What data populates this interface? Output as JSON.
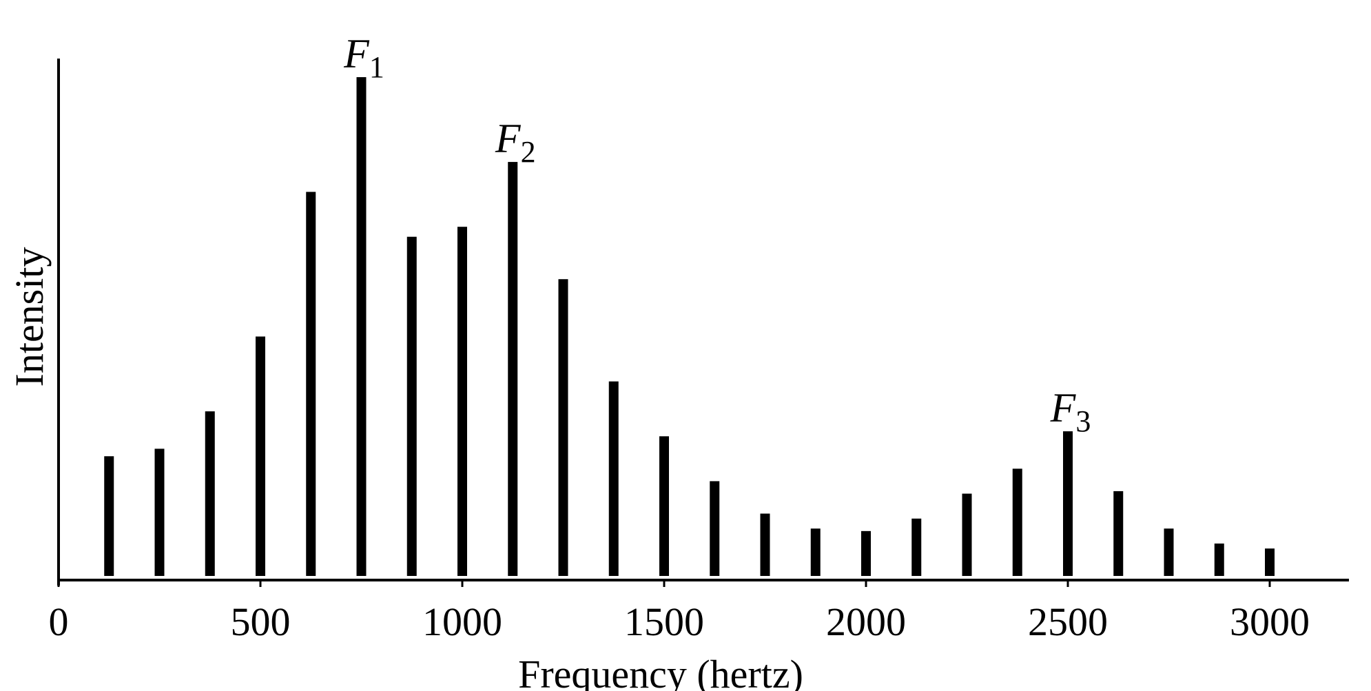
{
  "chart_data": {
    "type": "bar",
    "title": "",
    "xlabel": "Frequency (hertz)",
    "ylabel": "Intensity",
    "xlim": [
      0,
      3200
    ],
    "ylim": [
      0,
      100
    ],
    "xticks": [
      0,
      500,
      1000,
      1500,
      2000,
      2500,
      3000
    ],
    "grid": false,
    "legend": "none",
    "series": [
      {
        "x": [
          125,
          250,
          375,
          500,
          625,
          750,
          875,
          1000,
          1125,
          1250,
          1375,
          1500,
          1625,
          1750,
          1875,
          2000,
          2125,
          2250,
          2375,
          2500,
          2625,
          2750,
          2875,
          3000
        ],
        "values": [
          24,
          25.5,
          33,
          48,
          77,
          100,
          68,
          70,
          83,
          59.5,
          39,
          28,
          19,
          12.5,
          9.5,
          9,
          11.5,
          16.5,
          21.5,
          29,
          17,
          9.5,
          6.5,
          5.5
        ]
      }
    ],
    "annotations": [
      {
        "text": "F",
        "sub": "1",
        "x": 750,
        "y": 100
      },
      {
        "text": "F",
        "sub": "2",
        "x": 1125,
        "y": 83
      },
      {
        "text": "F",
        "sub": "3",
        "x": 2500,
        "y": 29
      }
    ],
    "colors": {
      "bar": "#000000",
      "axis": "#000000"
    }
  }
}
